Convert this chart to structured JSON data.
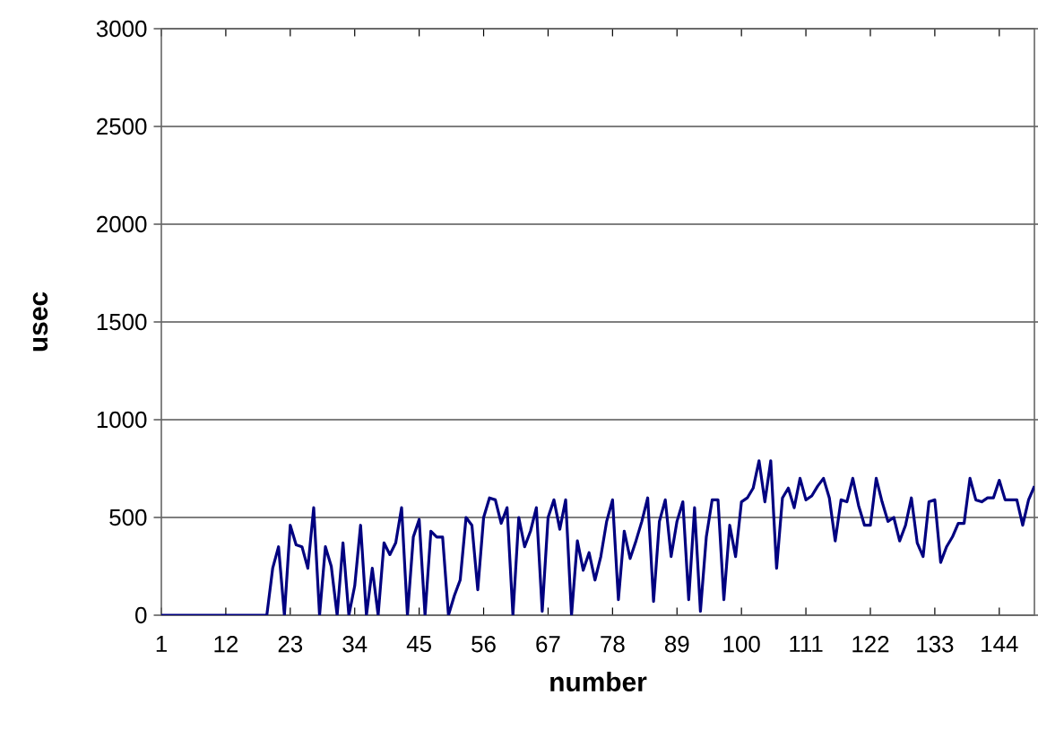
{
  "chart_data": {
    "type": "line",
    "xlabel": "number",
    "ylabel": "usec",
    "x": [
      1,
      2,
      3,
      4,
      5,
      6,
      7,
      8,
      9,
      10,
      11,
      12,
      13,
      14,
      15,
      16,
      17,
      18,
      19,
      20,
      21,
      22,
      23,
      24,
      25,
      26,
      27,
      28,
      29,
      30,
      31,
      32,
      33,
      34,
      35,
      36,
      37,
      38,
      39,
      40,
      41,
      42,
      43,
      44,
      45,
      46,
      47,
      48,
      49,
      50,
      51,
      52,
      53,
      54,
      55,
      56,
      57,
      58,
      59,
      60,
      61,
      62,
      63,
      64,
      65,
      66,
      67,
      68,
      69,
      70,
      71,
      72,
      73,
      74,
      75,
      76,
      77,
      78,
      79,
      80,
      81,
      82,
      83,
      84,
      85,
      86,
      87,
      88,
      89,
      90,
      91,
      92,
      93,
      94,
      95,
      96,
      97,
      98,
      99,
      100,
      101,
      102,
      103,
      104,
      105,
      106,
      107,
      108,
      109,
      110,
      111,
      112,
      113,
      114,
      115,
      116,
      117,
      118,
      119,
      120,
      121,
      122,
      123,
      124,
      125,
      126,
      127,
      128,
      129,
      130,
      131,
      132,
      133,
      134,
      135,
      136,
      137,
      138,
      139,
      140,
      141,
      142,
      143,
      144,
      145,
      146,
      147,
      148,
      149,
      150
    ],
    "values": [
      0,
      0,
      0,
      0,
      0,
      0,
      0,
      0,
      0,
      0,
      0,
      0,
      0,
      0,
      0,
      0,
      0,
      0,
      0,
      240,
      350,
      0,
      460,
      360,
      350,
      240,
      550,
      0,
      350,
      250,
      0,
      370,
      0,
      150,
      460,
      0,
      240,
      0,
      370,
      310,
      370,
      550,
      0,
      400,
      490,
      0,
      430,
      400,
      400,
      0,
      100,
      180,
      500,
      460,
      130,
      500,
      600,
      590,
      470,
      550,
      0,
      500,
      350,
      430,
      550,
      20,
      500,
      590,
      440,
      590,
      0,
      380,
      230,
      320,
      180,
      300,
      480,
      590,
      80,
      430,
      290,
      380,
      480,
      600,
      70,
      480,
      590,
      300,
      480,
      580,
      80,
      550,
      20,
      400,
      590,
      590,
      80,
      460,
      300,
      580,
      600,
      650,
      790,
      580,
      790,
      240,
      600,
      650,
      550,
      700,
      590,
      610,
      660,
      700,
      600,
      380,
      590,
      580,
      700,
      560,
      460,
      460,
      700,
      580,
      480,
      500,
      380,
      460,
      600,
      370,
      300,
      580,
      590,
      270,
      350,
      400,
      470,
      470,
      700,
      590,
      580,
      600,
      600,
      690,
      590,
      590,
      590,
      460,
      590,
      660
    ],
    "color": "#000080",
    "xlim": [
      1,
      150
    ],
    "xticks": [
      1,
      12,
      23,
      34,
      45,
      56,
      67,
      78,
      89,
      100,
      111,
      122,
      133,
      144
    ],
    "ylim": [
      0,
      3000
    ],
    "yticks": [
      0,
      500,
      1000,
      1500,
      2000,
      2500,
      3000
    ],
    "grid": "y",
    "marker": "none",
    "line_style": "solid"
  }
}
